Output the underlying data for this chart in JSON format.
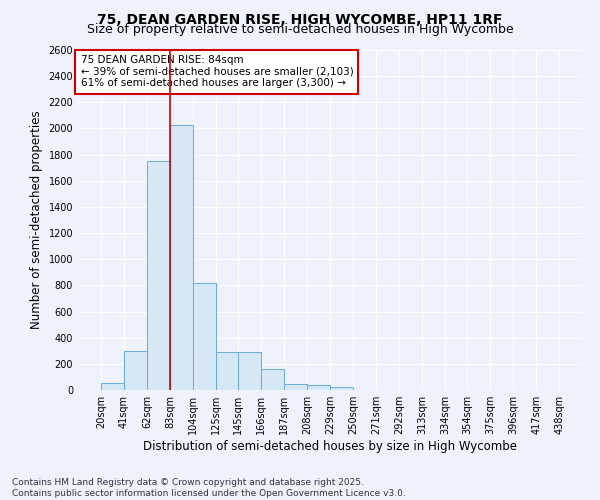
{
  "title_line1": "75, DEAN GARDEN RISE, HIGH WYCOMBE, HP11 1RF",
  "title_line2": "Size of property relative to semi-detached houses in High Wycombe",
  "xlabel": "Distribution of semi-detached houses by size in High Wycombe",
  "ylabel": "Number of semi-detached properties",
  "footer_line1": "Contains HM Land Registry data © Crown copyright and database right 2025.",
  "footer_line2": "Contains public sector information licensed under the Open Government Licence v3.0.",
  "annotation_line1": "75 DEAN GARDEN RISE: 84sqm",
  "annotation_line2": "← 39% of semi-detached houses are smaller (2,103)",
  "annotation_line3": "61% of semi-detached houses are larger (3,300) →",
  "bin_labels": [
    "20sqm",
    "41sqm",
    "62sqm",
    "83sqm",
    "104sqm",
    "125sqm",
    "145sqm",
    "166sqm",
    "187sqm",
    "208sqm",
    "229sqm",
    "250sqm",
    "271sqm",
    "292sqm",
    "313sqm",
    "334sqm",
    "354sqm",
    "375sqm",
    "396sqm",
    "417sqm",
    "438sqm"
  ],
  "bin_edges": [
    20,
    41,
    62,
    83,
    104,
    125,
    145,
    166,
    187,
    208,
    229,
    250,
    271,
    292,
    313,
    334,
    354,
    375,
    396,
    417,
    438
  ],
  "bar_values": [
    55,
    295,
    1755,
    2025,
    815,
    290,
    290,
    160,
    45,
    40,
    25,
    0,
    0,
    0,
    0,
    0,
    0,
    0,
    0,
    0
  ],
  "bar_color": "#d6e8f5",
  "bar_edge_color": "#6aaad4",
  "vline_color": "#cc0000",
  "vline_x": 83,
  "ylim": [
    0,
    2600
  ],
  "yticks": [
    0,
    200,
    400,
    600,
    800,
    1000,
    1200,
    1400,
    1600,
    1800,
    2000,
    2200,
    2400,
    2600
  ],
  "background_color": "#eef2fa",
  "plot_background": "#eef2fa",
  "annotation_box_color": "#ffffff",
  "annotation_box_edge": "#cc0000",
  "title_fontsize": 10,
  "subtitle_fontsize": 9,
  "axis_label_fontsize": 8.5,
  "tick_fontsize": 7,
  "annotation_fontsize": 7.5,
  "footer_fontsize": 6.5
}
